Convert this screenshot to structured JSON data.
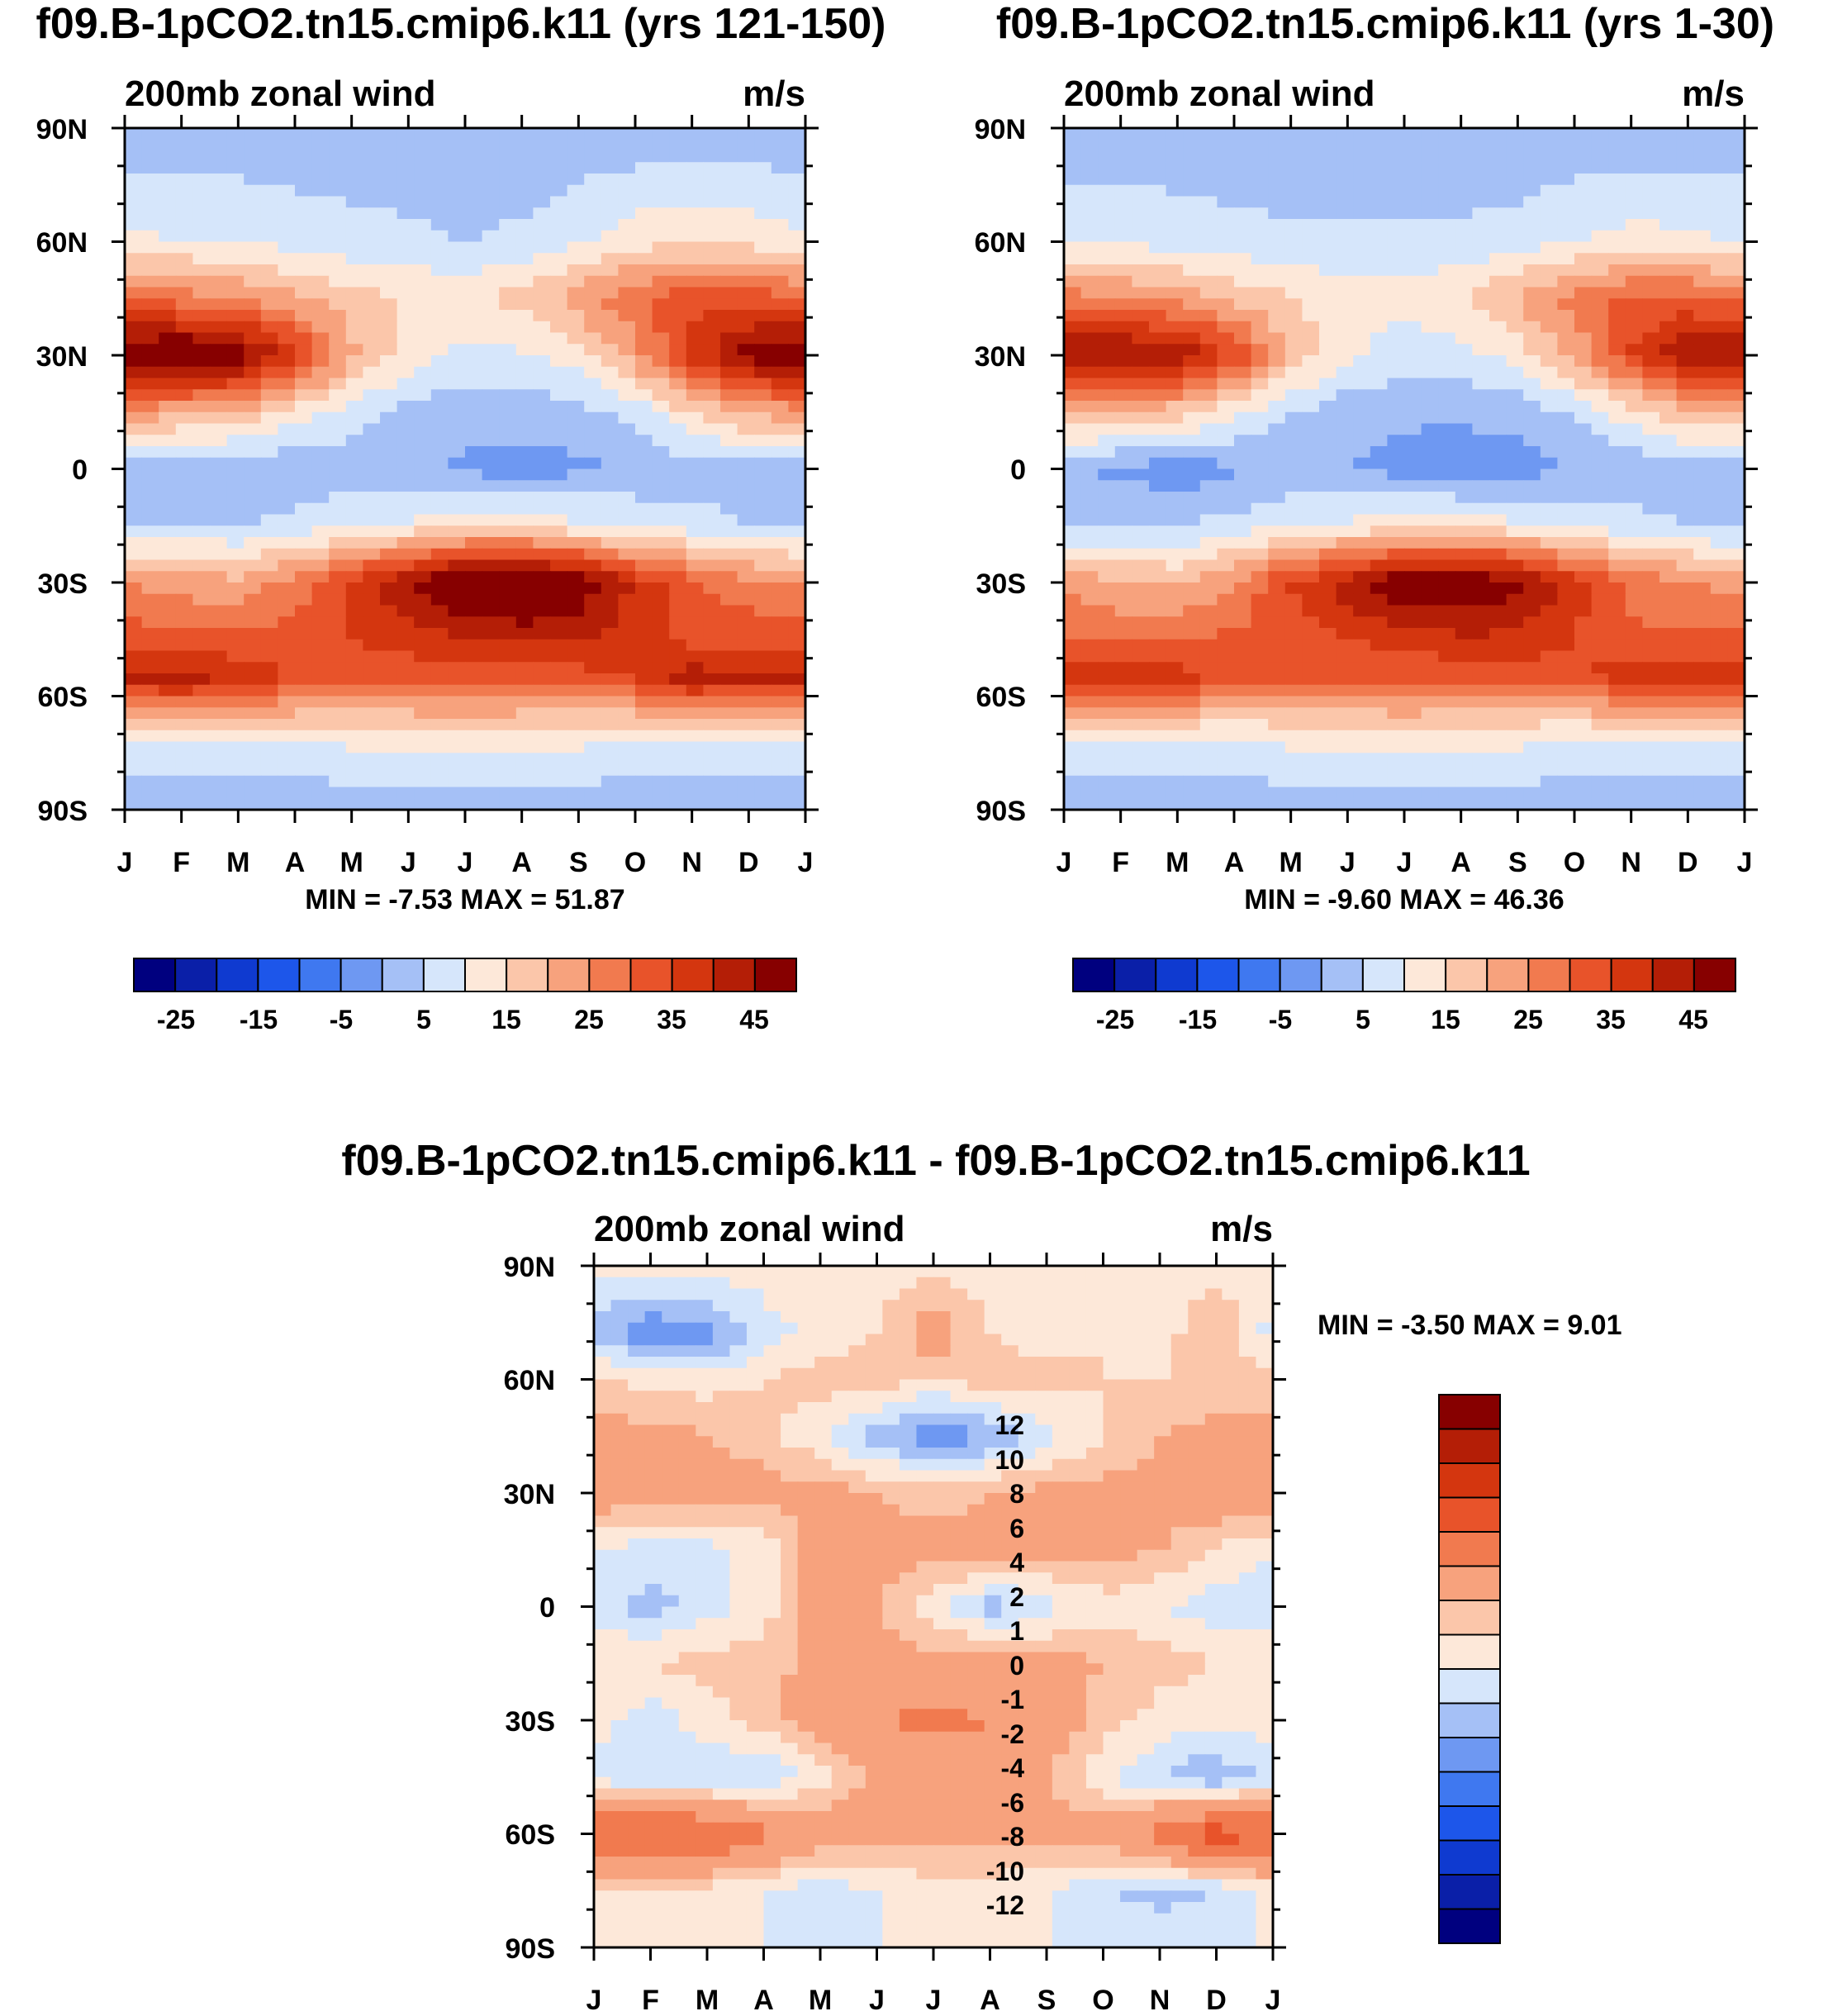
{
  "chart_data": [
    {
      "type": "heatmap",
      "title": "f09.B-1pCO2.tn15.cmip6.k11 (yrs 121-150)",
      "subtitle_left": "200mb zonal wind",
      "subtitle_right": "m/s",
      "stats": "MIN =  -7.53 MAX =  51.87",
      "x_ticks": [
        "J",
        "F",
        "M",
        "A",
        "M",
        "J",
        "J",
        "A",
        "S",
        "O",
        "N",
        "D",
        "J"
      ],
      "y_ticks": [
        "90N",
        "60N",
        "30N",
        "0",
        "30S",
        "60S",
        "90S"
      ],
      "lat_rows": [
        90,
        60,
        45,
        30,
        15,
        0,
        -15,
        -30,
        -45,
        -55,
        -70,
        -90
      ],
      "values": [
        [
          -4,
          -4,
          -4,
          -4,
          -4,
          -4,
          -4,
          -4,
          -4,
          -4,
          -4,
          -4,
          -4
        ],
        [
          6,
          5,
          5,
          3,
          2,
          1,
          0,
          1,
          4,
          8,
          9,
          8,
          6
        ],
        [
          24,
          22,
          20,
          16,
          12,
          10,
          9,
          12,
          18,
          24,
          28,
          28,
          25
        ],
        [
          46,
          48,
          44,
          32,
          16,
          8,
          3,
          4,
          8,
          18,
          32,
          42,
          46
        ],
        [
          18,
          16,
          14,
          8,
          2,
          -2,
          -3,
          -3,
          -2,
          2,
          10,
          16,
          18
        ],
        [
          -3,
          -4,
          -5,
          -4,
          -3,
          -4,
          -6,
          -7,
          -6,
          -4,
          -3,
          -2,
          -3
        ],
        [
          -1,
          0,
          0,
          2,
          4,
          6,
          8,
          8,
          6,
          4,
          2,
          0,
          -1
        ],
        [
          20,
          18,
          16,
          22,
          32,
          40,
          48,
          50,
          44,
          34,
          26,
          22,
          20
        ],
        [
          28,
          26,
          26,
          28,
          30,
          32,
          34,
          36,
          36,
          32,
          28,
          28,
          28
        ],
        [
          36,
          38,
          34,
          30,
          28,
          27,
          27,
          27,
          28,
          30,
          38,
          36,
          36
        ],
        [
          6,
          6,
          6,
          6,
          7,
          8,
          9,
          8,
          7,
          6,
          6,
          6,
          6
        ],
        [
          -4,
          -4,
          -4,
          -4,
          -4,
          -4,
          -4,
          -4,
          -4,
          -4,
          -4,
          -4,
          -4
        ]
      ],
      "colorbar_labels": [
        "-25",
        "-15",
        "-5",
        "5",
        "15",
        "25",
        "35",
        "45"
      ]
    },
    {
      "type": "heatmap",
      "title": "f09.B-1pCO2.tn15.cmip6.k11 (yrs 1-30)",
      "subtitle_left": "200mb zonal wind",
      "subtitle_right": "m/s",
      "stats": "MIN =  -9.60 MAX =  46.36",
      "x_ticks": [
        "J",
        "F",
        "M",
        "A",
        "M",
        "J",
        "J",
        "A",
        "S",
        "O",
        "N",
        "D",
        "J"
      ],
      "y_ticks": [
        "90N",
        "60N",
        "30N",
        "0",
        "30S",
        "60S",
        "90S"
      ],
      "lat_rows": [
        90,
        60,
        45,
        30,
        15,
        0,
        -15,
        -30,
        -45,
        -55,
        -70,
        -90
      ],
      "values": [
        [
          -4,
          -4,
          -4,
          -4,
          -4,
          -4,
          -4,
          -4,
          -4,
          -4,
          -4,
          -4,
          -4
        ],
        [
          5,
          4,
          3,
          2,
          1,
          1,
          1,
          1,
          2,
          5,
          7,
          6,
          5
        ],
        [
          22,
          20,
          18,
          14,
          10,
          8,
          7,
          10,
          16,
          22,
          26,
          26,
          23
        ],
        [
          42,
          42,
          40,
          30,
          14,
          6,
          2,
          3,
          7,
          16,
          30,
          40,
          42
        ],
        [
          16,
          14,
          12,
          6,
          0,
          -3,
          -4,
          -4,
          -3,
          1,
          8,
          14,
          16
        ],
        [
          -4,
          -6,
          -8,
          -6,
          -4,
          -5,
          -7,
          -8,
          -7,
          -5,
          -4,
          -3,
          -4
        ],
        [
          -2,
          -1,
          0,
          2,
          4,
          6,
          8,
          8,
          6,
          4,
          2,
          0,
          -2
        ],
        [
          18,
          16,
          14,
          20,
          30,
          38,
          45,
          46,
          42,
          32,
          24,
          20,
          18
        ],
        [
          26,
          24,
          24,
          26,
          28,
          30,
          32,
          34,
          34,
          30,
          26,
          26,
          26
        ],
        [
          34,
          34,
          32,
          28,
          26,
          26,
          26,
          26,
          27,
          28,
          34,
          34,
          34
        ],
        [
          6,
          6,
          6,
          6,
          7,
          8,
          9,
          8,
          7,
          6,
          6,
          6,
          6
        ],
        [
          -4,
          -4,
          -4,
          -4,
          -4,
          -4,
          -4,
          -4,
          -4,
          -4,
          -4,
          -4,
          -4
        ]
      ],
      "colorbar_labels": [
        "-25",
        "-15",
        "-5",
        "5",
        "15",
        "25",
        "35",
        "45"
      ]
    },
    {
      "type": "heatmap",
      "title": "f09.B-1pCO2.tn15.cmip6.k11 - f09.B-1pCO2.tn15.cmip6.k11",
      "subtitle_left": "200mb zonal wind",
      "subtitle_right": "m/s",
      "stats": "MIN =  -3.50 MAX =   9.01",
      "x_ticks": [
        "J",
        "F",
        "M",
        "A",
        "M",
        "J",
        "J",
        "A",
        "S",
        "O",
        "N",
        "D",
        "J"
      ],
      "y_ticks": [
        "90N",
        "60N",
        "30N",
        "0",
        "30S",
        "60S",
        "90S"
      ],
      "lat_rows": [
        90,
        72,
        60,
        45,
        30,
        15,
        0,
        -15,
        -30,
        -45,
        -60,
        -75,
        -90
      ],
      "values": [
        [
          0.5,
          0.5,
          0.5,
          0.5,
          0.5,
          0.5,
          0.5,
          0.5,
          0.5,
          0.5,
          0.5,
          0.5,
          0.5
        ],
        [
          -1.5,
          -3,
          -2.5,
          -0.5,
          0.5,
          1,
          3,
          1,
          0.5,
          1,
          0.5,
          2,
          -0.5
        ],
        [
          1.5,
          0.5,
          0.5,
          1,
          1.5,
          1.5,
          1,
          1.5,
          1.5,
          1,
          1,
          1,
          1.5
        ],
        [
          2.5,
          2.5,
          2,
          1.5,
          0,
          -1.5,
          -3,
          -2,
          -0.5,
          1,
          2,
          2.5,
          2.5
        ],
        [
          3,
          2.5,
          2.5,
          2.5,
          2.5,
          2,
          1.5,
          2,
          2.5,
          2.5,
          2.5,
          3,
          3
        ],
        [
          0,
          -0.5,
          -0.5,
          0.5,
          2.5,
          2.5,
          2.5,
          2.5,
          2.5,
          2.5,
          2,
          1,
          0
        ],
        [
          -0.5,
          -1.5,
          -0.5,
          0.5,
          2.5,
          2,
          0.5,
          -1.5,
          -0.5,
          0.5,
          0,
          -0.5,
          -0.5
        ],
        [
          1,
          1,
          1.5,
          1.5,
          2.5,
          2.5,
          2.5,
          2.5,
          2.5,
          2,
          1.5,
          1,
          1
        ],
        [
          0.5,
          -0.5,
          0.5,
          1.5,
          3,
          4,
          4.5,
          4,
          3,
          1.5,
          0.5,
          0.5,
          0.5
        ],
        [
          -0.5,
          -1,
          -1,
          -1,
          0.5,
          2.5,
          3,
          3,
          2,
          0,
          -1,
          -2,
          -0.5
        ],
        [
          6,
          6.5,
          6,
          4.5,
          3,
          2.5,
          2.5,
          2.5,
          2.5,
          3,
          5,
          7,
          6
        ],
        [
          0.5,
          1,
          0.5,
          0,
          -0.5,
          0,
          0.5,
          0.5,
          0,
          -1,
          -1.5,
          -1,
          0.5
        ],
        [
          0,
          0,
          0,
          0,
          0,
          0,
          0,
          0,
          0,
          0,
          0,
          0,
          0
        ]
      ],
      "colorbar_labels": [
        "12",
        "10",
        "8",
        "6",
        "4",
        "2",
        "1",
        "0",
        "-1",
        "-2",
        "-4",
        "-6",
        "-8",
        "-10",
        "-12"
      ]
    }
  ]
}
